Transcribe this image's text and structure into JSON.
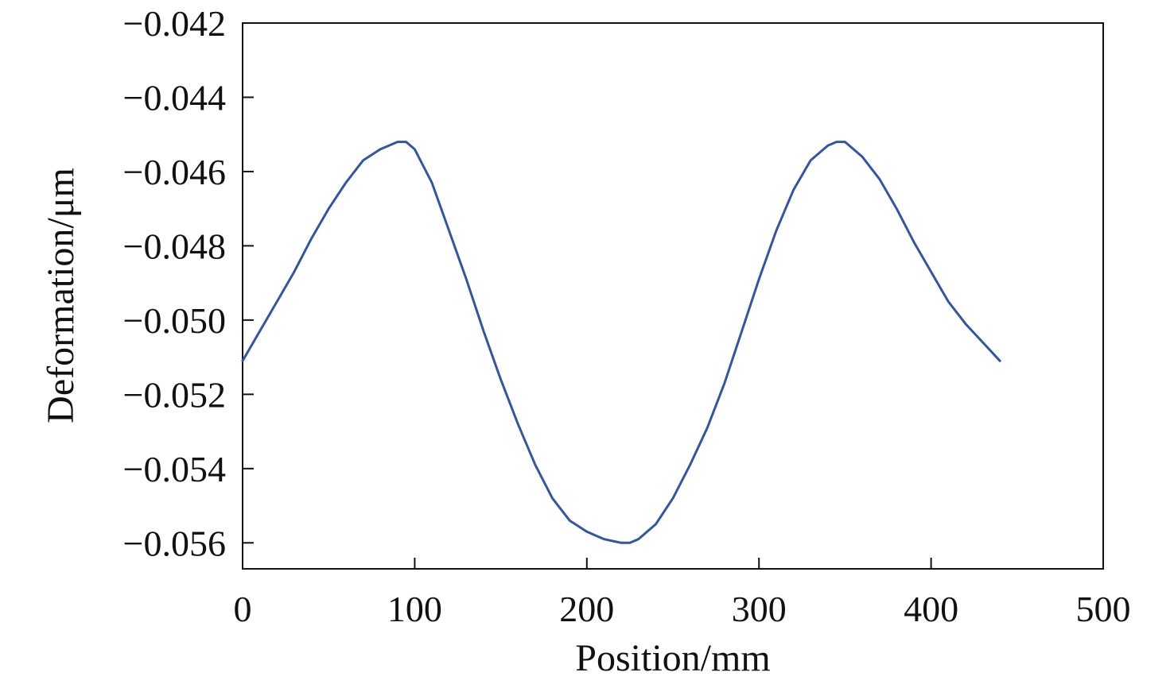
{
  "chart_data": {
    "type": "line",
    "title": "",
    "xlabel": "Position/mm",
    "ylabel": "Deformation/μm",
    "xlim": [
      0,
      500
    ],
    "ylim": [
      -0.0567,
      -0.042
    ],
    "x_ticks": [
      0,
      100,
      200,
      300,
      400,
      500
    ],
    "x_tick_labels": [
      "0",
      "100",
      "200",
      "300",
      "400",
      "500"
    ],
    "y_ticks": [
      -0.042,
      -0.044,
      -0.046,
      -0.048,
      -0.05,
      -0.052,
      -0.054,
      -0.056
    ],
    "y_tick_labels": [
      "−0.042",
      "−0.044",
      "−0.046",
      "−0.048",
      "−0.050",
      "−0.052",
      "−0.054",
      "−0.056"
    ],
    "grid": false,
    "legend": "none",
    "line_color": "#3355a5",
    "series": [
      {
        "x": [
          0,
          10,
          20,
          30,
          40,
          50,
          60,
          70,
          80,
          90,
          95,
          100,
          110,
          120,
          130,
          140,
          150,
          160,
          170,
          180,
          190,
          200,
          210,
          220,
          225,
          230,
          240,
          250,
          260,
          270,
          280,
          290,
          300,
          310,
          320,
          330,
          340,
          345,
          350,
          360,
          370,
          380,
          390,
          400,
          410,
          420,
          430,
          440
        ],
        "y": [
          -0.0511,
          -0.0503,
          -0.0495,
          -0.0487,
          -0.0478,
          -0.047,
          -0.0463,
          -0.0457,
          -0.0454,
          -0.0452,
          -0.0452,
          -0.0454,
          -0.0463,
          -0.0476,
          -0.0489,
          -0.0503,
          -0.0516,
          -0.0528,
          -0.0539,
          -0.0548,
          -0.0554,
          -0.0557,
          -0.0559,
          -0.056,
          -0.056,
          -0.0559,
          -0.0555,
          -0.0548,
          -0.0539,
          -0.0529,
          -0.0517,
          -0.0503,
          -0.0489,
          -0.0476,
          -0.0465,
          -0.0457,
          -0.0453,
          -0.0452,
          -0.0452,
          -0.0456,
          -0.0462,
          -0.047,
          -0.0479,
          -0.0487,
          -0.0495,
          -0.0501,
          -0.0506,
          -0.0511
        ]
      }
    ]
  }
}
